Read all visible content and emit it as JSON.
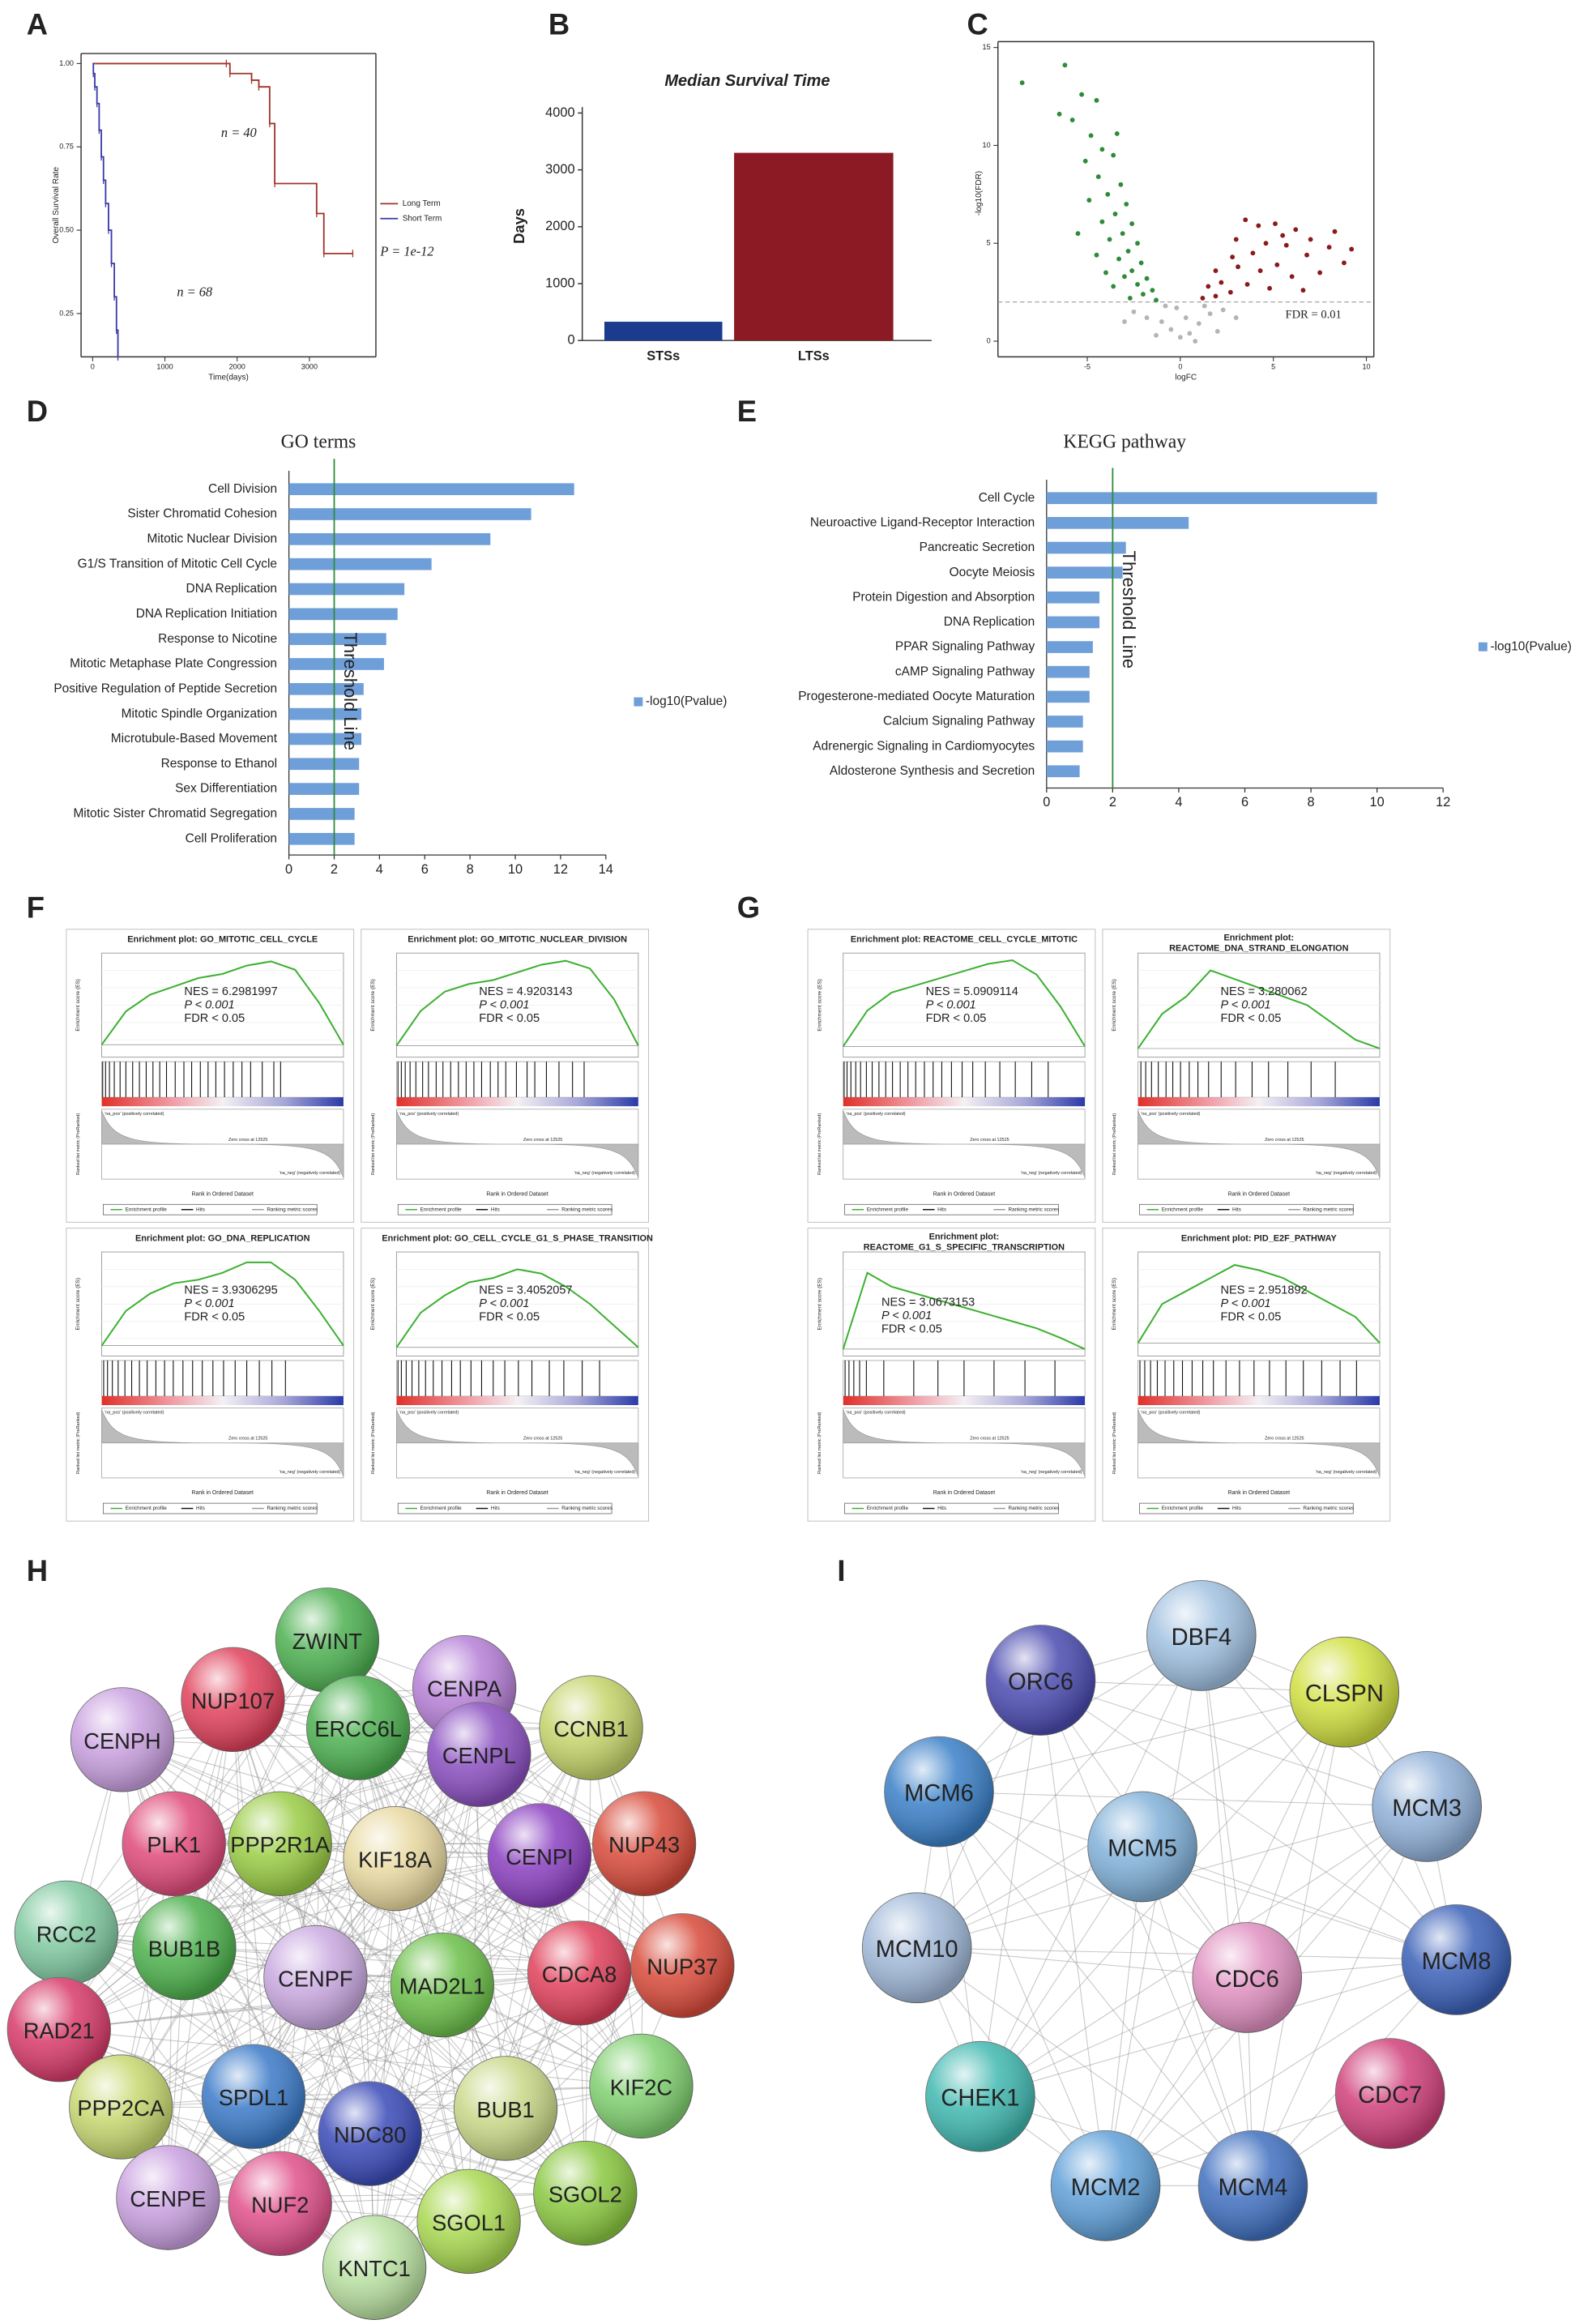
{
  "panels": [
    "A",
    "B",
    "C",
    "D",
    "E",
    "F",
    "G",
    "H",
    "I"
  ],
  "chart_data": [
    {
      "type": "km",
      "x_label": "Time(days)",
      "y_label": "Overall Survival Rate",
      "xlim": [
        -160,
        3920
      ],
      "xticks": [
        0,
        1000,
        2000,
        3000
      ],
      "ylim": [
        0.12,
        1.03
      ],
      "yticks": [
        0.25,
        {
          "value": 0.5,
          "label": "0.50"
        },
        0.75,
        {
          "value": 1,
          "label": "1.00"
        }
      ],
      "series": [
        {
          "name": "Long Term",
          "color": "#a0332b",
          "x": [
            0,
            1850,
            1900,
            2200,
            2300,
            2450,
            2520,
            3100,
            3200,
            3600
          ],
          "values": [
            1,
            1,
            0.97,
            0.95,
            0.93,
            0.82,
            0.64,
            0.55,
            0.43,
            0.43
          ]
        },
        {
          "name": "Short Term",
          "color": "#3a3aa8",
          "x": [
            0,
            10,
            30,
            60,
            90,
            120,
            150,
            180,
            220,
            260,
            300,
            330,
            350
          ],
          "values": [
            1,
            0.97,
            0.93,
            0.88,
            0.8,
            0.72,
            0.65,
            0.58,
            0.5,
            0.4,
            0.3,
            0.2,
            0.12
          ]
        }
      ],
      "annotations": [
        "n = 40",
        "n = 68",
        "P = 1e-12"
      ]
    },
    {
      "type": "bar",
      "title": "Median Survival Time",
      "y_label": "Days",
      "categories": [
        "STSs",
        "LTSs"
      ],
      "values": [
        330,
        3300
      ],
      "colors": [
        "#1b3b8f",
        "#8b1a24"
      ],
      "ylim": [
        0,
        4000
      ],
      "yticks": [
        0,
        1000,
        2000,
        3000,
        4000
      ]
    },
    {
      "type": "scatter",
      "x_label": "logFC",
      "y_label": "-log10(FDR)",
      "xlim": [
        -9.8,
        10.4
      ],
      "xticks": [
        -5,
        0,
        5,
        10
      ],
      "ylim": [
        -0.8,
        15.3
      ],
      "yticks": [
        0,
        5,
        10,
        15
      ],
      "hline": 2,
      "hline_label": "FDR = 0.01",
      "series": [
        {
          "color": "#2e8b3a",
          "x": [
            -8.5,
            -6.2,
            -5.3,
            -6.5,
            -5.8,
            -4.5,
            -4.8,
            -4.2,
            -3.6,
            -5.1,
            -4.4,
            -3.2,
            -3.9,
            -4.9,
            -2.9,
            -3.5,
            -4.2,
            -2.6,
            -3.1,
            -3.8,
            -2.3,
            -2.8,
            -4.5,
            -3.3,
            -2.1,
            -2.6,
            -3.0,
            -1.8,
            -2.3,
            -3.6,
            -1.5,
            -2.0,
            -2.7,
            -1.3,
            -4.0,
            -5.5,
            -3.4
          ],
          "values": [
            13.2,
            14.1,
            12.6,
            11.6,
            11.3,
            12.3,
            10.5,
            9.8,
            9.5,
            9.2,
            8.4,
            8.0,
            7.5,
            7.2,
            7.0,
            6.5,
            6.1,
            6.0,
            5.5,
            5.2,
            5.0,
            4.6,
            4.4,
            4.2,
            4.0,
            3.6,
            3.3,
            3.2,
            2.9,
            2.8,
            2.6,
            2.4,
            2.2,
            2.1,
            3.5,
            5.5,
            10.6
          ]
        },
        {
          "color": "#8b1a1a",
          "x": [
            3.5,
            4.2,
            5.1,
            6.2,
            7.0,
            8.0,
            8.8,
            6.8,
            5.7,
            4.6,
            3.9,
            2.8,
            1.9,
            3.1,
            2.2,
            1.5,
            4.3,
            5.2,
            6.0,
            7.5,
            2.7,
            3.6,
            1.2,
            1.9,
            4.8,
            6.6,
            9.2,
            5.5,
            3.0,
            8.3
          ],
          "values": [
            6.2,
            5.9,
            6.0,
            5.7,
            5.2,
            4.8,
            4.0,
            4.4,
            4.9,
            5.0,
            4.5,
            4.3,
            3.6,
            3.8,
            3.0,
            2.8,
            3.6,
            3.9,
            3.3,
            3.5,
            2.5,
            2.9,
            2.2,
            2.3,
            2.7,
            2.6,
            4.7,
            5.4,
            5.2,
            5.6
          ]
        },
        {
          "color": "#b4b4b4",
          "x": [
            -2.5,
            -1.8,
            -1.0,
            -0.5,
            0,
            0.5,
            1.0,
            1.6,
            2.3,
            3.0,
            -3.0,
            -0.2,
            0.8,
            -1.3,
            2.0,
            0.3,
            -0.8,
            1.3
          ],
          "values": [
            1.5,
            1.2,
            1.0,
            0.6,
            0.2,
            0.4,
            0.9,
            1.4,
            1.6,
            1.2,
            1.0,
            1.7,
            0.0,
            0.3,
            0.5,
            1.2,
            1.8,
            1.8
          ]
        }
      ]
    },
    {
      "type": "hbar",
      "title": "GO terms",
      "legend": "-log10(Pvalue)",
      "threshold": 2,
      "threshold_label": "Threshold Line",
      "color": "#6f9fd8",
      "categories": [
        "Cell Division",
        "Sister Chromatid Cohesion",
        "Mitotic Nuclear Division",
        "G1/S Transition of Mitotic Cell Cycle",
        "DNA Replication",
        "DNA Replication Initiation",
        "Response to Nicotine",
        "Mitotic Metaphase Plate Congression",
        "Positive Regulation of Peptide Secretion",
        "Mitotic Spindle Organization",
        "Microtubule-Based Movement",
        "Response to Ethanol",
        "Sex Differentiation",
        "Mitotic Sister Chromatid Segregation",
        "Cell Proliferation"
      ],
      "values": [
        12.6,
        10.7,
        8.9,
        6.3,
        5.1,
        4.8,
        4.3,
        4.2,
        3.3,
        3.2,
        3.2,
        3.1,
        3.1,
        2.9,
        2.9
      ],
      "xlim": [
        0,
        14
      ],
      "xticks": [
        0,
        2,
        4,
        6,
        8,
        10,
        12,
        14
      ]
    },
    {
      "type": "hbar",
      "title": "KEGG pathway",
      "legend": "-log10(Pvalue)",
      "threshold": 2,
      "threshold_label": "Threshold Line",
      "color": "#6f9fd8",
      "categories": [
        "Cell Cycle",
        "Neuroactive Ligand-Receptor Interaction",
        "Pancreatic Secretion",
        "Oocyte Meiosis",
        "Protein Digestion and Absorption",
        "DNA Replication",
        "PPAR Signaling Pathway",
        "cAMP Signaling Pathway",
        "Progesterone-mediated Oocyte Maturation",
        "Calcium Signaling Pathway",
        "Adrenergic Signaling in Cardiomyocytes",
        "Aldosterone Synthesis and Secretion"
      ],
      "values": [
        10,
        4.3,
        2.4,
        2.3,
        1.6,
        1.6,
        1.4,
        1.3,
        1.3,
        1.1,
        1.1,
        1.0
      ],
      "xlim": [
        0,
        12
      ],
      "xticks": [
        0,
        2,
        4,
        6,
        8,
        10,
        12
      ]
    },
    {
      "type": "gsea",
      "title": "Enrichment plot: GO_MITOTIC_CELL_CYCLE",
      "nes": "NES = 6.2981997",
      "p": "P < 0.001",
      "fdr": "FDR < 0.05",
      "xlim": [
        0,
        25000
      ],
      "ylim": [
        -0.03,
        0.22
      ],
      "x": [
        0,
        2500,
        5000,
        7500,
        10000,
        12500,
        15000,
        17500,
        20000,
        22500,
        25000
      ],
      "values": [
        0,
        0.08,
        0.12,
        0.14,
        0.16,
        0.17,
        0.19,
        0.2,
        0.18,
        0.1,
        0
      ],
      "hits": [
        100,
        400,
        800,
        1300,
        1900,
        2500,
        3200,
        3900,
        4600,
        5300,
        6000,
        6700,
        7600,
        8500,
        9300,
        10200,
        11000,
        11800,
        12700,
        13600,
        14500,
        15400,
        16600,
        17800,
        18500
      ]
    },
    {
      "type": "gsea",
      "title": "Enrichment plot: GO_MITOTIC_NUCLEAR_DIVISION",
      "nes": "NES = 4.9203143",
      "p": "P < 0.001",
      "fdr": "FDR < 0.05",
      "xlim": [
        0,
        25000
      ],
      "ylim": [
        -0.03,
        0.24
      ],
      "x": [
        0,
        2500,
        5000,
        7500,
        10000,
        12500,
        15000,
        17500,
        20000,
        22500,
        25000
      ],
      "values": [
        0,
        0.09,
        0.14,
        0.16,
        0.17,
        0.19,
        0.21,
        0.22,
        0.2,
        0.12,
        0
      ],
      "hits": [
        150,
        500,
        900,
        1400,
        2000,
        2700,
        3300,
        4100,
        4800,
        5600,
        6400,
        7200,
        8000,
        8800,
        9700,
        10500,
        11300,
        12400,
        13500,
        14300,
        15500,
        16800,
        18200,
        19400
      ]
    },
    {
      "type": "gsea",
      "title": "Enrichment plot: GO_DNA_REPLICATION",
      "nes": "NES = 3.9306295",
      "p": "P < 0.001",
      "fdr": "FDR < 0.05",
      "xlim": [
        0,
        25000
      ],
      "ylim": [
        -0.03,
        0.27
      ],
      "x": [
        0,
        2500,
        5000,
        7500,
        10000,
        12500,
        15000,
        17500,
        20000,
        22500,
        25000
      ],
      "values": [
        0,
        0.1,
        0.15,
        0.18,
        0.19,
        0.21,
        0.24,
        0.24,
        0.19,
        0.1,
        0
      ],
      "hits": [
        200,
        600,
        1100,
        1700,
        2400,
        3100,
        3900,
        4700,
        5600,
        6500,
        7400,
        8400,
        9400,
        10400,
        11500,
        12600,
        13800,
        15000,
        16300,
        17600,
        19000
      ]
    },
    {
      "type": "gsea",
      "title": "Enrichment plot: GO_CELL_CYCLE_G1_S_PHASE_TRANSITION",
      "nes": "NES = 3.4052057",
      "p": "P < 0.001",
      "fdr": "FDR < 0.05",
      "xlim": [
        0,
        25000
      ],
      "ylim": [
        -0.02,
        0.22
      ],
      "x": [
        0,
        2500,
        5000,
        7500,
        10000,
        12500,
        15000,
        17500,
        20000,
        22500,
        25000
      ],
      "values": [
        0,
        0.08,
        0.12,
        0.15,
        0.16,
        0.18,
        0.17,
        0.14,
        0.1,
        0.05,
        0
      ],
      "hits": [
        150,
        500,
        1000,
        1600,
        2300,
        3000,
        3800,
        4700,
        5700,
        6600,
        7700,
        8800,
        10000,
        11200,
        12600,
        14000,
        15800,
        17300,
        19200,
        21000
      ]
    },
    {
      "type": "gsea",
      "title": "Enrichment plot: REACTOME_CELL_CYCLE_MITOTIC",
      "nes": "NES = 5.0909114",
      "p": "P < 0.001",
      "fdr": "FDR < 0.05",
      "xlim": [
        0,
        25000
      ],
      "ylim": [
        -0.03,
        0.26
      ],
      "x": [
        0,
        2500,
        5000,
        7500,
        10000,
        12500,
        15000,
        17500,
        20000,
        22500,
        25000
      ],
      "values": [
        0,
        0.1,
        0.15,
        0.17,
        0.19,
        0.21,
        0.23,
        0.24,
        0.2,
        0.11,
        0
      ],
      "hits": [
        100,
        400,
        800,
        1300,
        1800,
        2400,
        3000,
        3700,
        4400,
        5100,
        5900,
        6700,
        7500,
        8400,
        9300,
        10200,
        11200,
        12300,
        13400,
        14700,
        16200,
        17800,
        19500,
        21200
      ]
    },
    {
      "type": "gsea",
      "title": [
        "Enrichment plot:",
        "REACTOME_DNA_STRAND_ELONGATION"
      ],
      "nes": "NES = 3.280062",
      "p": "P < 0.001",
      "fdr": "FDR < 0.05",
      "xlim": [
        0,
        25000
      ],
      "ylim": [
        -0.05,
        0.55
      ],
      "x": [
        0,
        2500,
        5000,
        7500,
        10000,
        12500,
        15000,
        17500,
        20000,
        22500,
        25000
      ],
      "values": [
        0,
        0.2,
        0.3,
        0.45,
        0.4,
        0.35,
        0.3,
        0.25,
        0.15,
        0.05,
        0
      ],
      "hits": [
        300,
        800,
        1400,
        2100,
        2900,
        3600,
        4400,
        5300,
        6200,
        7300,
        8600,
        10100,
        11800,
        13500,
        15500,
        17900,
        20400
      ]
    },
    {
      "type": "gsea",
      "title": [
        "Enrichment plot:",
        "REACTOME_G1_S_SPECIFIC_TRANSCRIPTION"
      ],
      "nes": "NES = 3.0673153",
      "p": "P < 0.001",
      "fdr": "FDR < 0.05",
      "xlim": [
        0,
        25000
      ],
      "ylim": [
        -0.05,
        0.7
      ],
      "x": [
        0,
        2500,
        5000,
        7500,
        10000,
        12500,
        15000,
        17500,
        20000,
        22500,
        25000
      ],
      "values": [
        0,
        0.55,
        0.45,
        0.4,
        0.35,
        0.3,
        0.25,
        0.2,
        0.15,
        0.08,
        0
      ],
      "hits": [
        200,
        600,
        1100,
        1700,
        2400,
        4200,
        7300,
        9800,
        12500,
        15600,
        18800,
        21900
      ]
    },
    {
      "type": "gsea",
      "title": "Enrichment plot: PID_E2F_PATHWAY",
      "nes": "NES = 2.951892",
      "p": "P < 0.001",
      "fdr": "FDR < 0.05",
      "xlim": [
        0,
        25000
      ],
      "ylim": [
        -0.05,
        0.35
      ],
      "x": [
        0,
        2500,
        5000,
        7500,
        10000,
        12500,
        15000,
        17500,
        20000,
        22500,
        25000
      ],
      "values": [
        0,
        0.15,
        0.2,
        0.25,
        0.3,
        0.28,
        0.25,
        0.2,
        0.15,
        0.1,
        0
      ],
      "hits": [
        200,
        700,
        1300,
        2000,
        2800,
        3700,
        4600,
        5600,
        6700,
        7800,
        9100,
        10500,
        12000,
        13600,
        15300,
        17100,
        19000,
        20900,
        22600
      ]
    }
  ],
  "gsea_labels": {
    "y_label": "Enrichment score (ES)",
    "x_label": "Rank in Ordered Dataset",
    "rank_label": "Ranked list metric (PreRanked)",
    "pos": "'na_pos' (positively correlated)",
    "neg": "'na_neg' (negatively correlated)",
    "zero": "Zero cross at 12525",
    "legend": [
      "Enrichment profile",
      "Hits",
      "Ranking metric scores"
    ]
  },
  "networks": [
    {
      "nodes": [
        "ZWINT",
        "CENPA",
        "NUP107",
        "ERCC6L",
        "CCNB1",
        "CENPH",
        "CENPL",
        "PLK1",
        "PPP2R1A",
        "KIF18A",
        "CENPI",
        "NUP43",
        "RCC2",
        "BUB1B",
        "CENPF",
        "MAD2L1",
        "CDCA8",
        "NUP37",
        "RAD21",
        "PPP2CA",
        "SPDL1",
        "NDC80",
        "BUB1",
        "KIF2C",
        "CENPE",
        "NUF2",
        "SGOL2",
        "SGOL1",
        "KNTC1"
      ]
    },
    {
      "nodes": [
        "ORC6",
        "DBF4",
        "CLSPN",
        "MCM6",
        "MCM3",
        "MCM5",
        "MCM10",
        "CDC6",
        "MCM8",
        "CHEK1",
        "CDC7",
        "MCM2",
        "MCM4"
      ]
    }
  ]
}
